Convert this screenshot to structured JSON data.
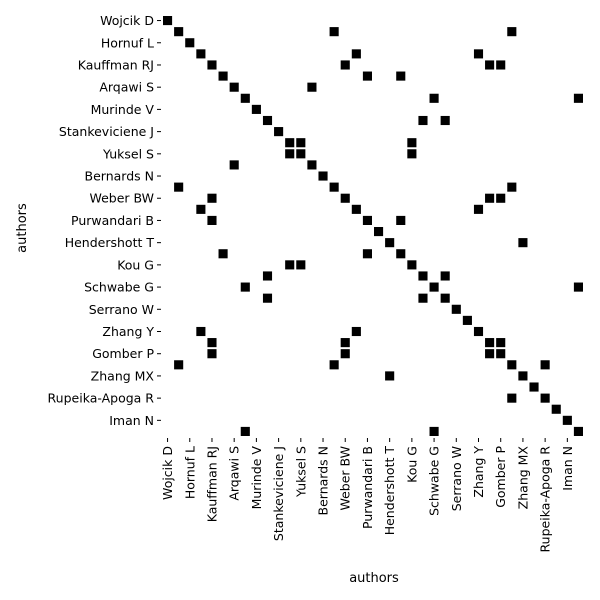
{
  "chart_data": {
    "type": "heatmap",
    "title": "",
    "xlabel": "authors",
    "ylabel": "authors",
    "grid": false,
    "legend": "none",
    "cell_color": "#000000",
    "background_color": "#ffffff",
    "authors": [
      "Wojcik D",
      "",
      "Hornuf L",
      "",
      "Kauffman RJ",
      "",
      "Arqawi S",
      "",
      "Murinde V",
      "",
      "Stankeviciene J",
      "",
      "Yuksel S",
      "",
      "Bernards N",
      "",
      "Weber BW",
      "",
      "Purwandari B",
      "",
      "Hendershott T",
      "",
      "Kou G",
      "",
      "Schwabe G",
      "",
      "Serrano W",
      "",
      "Zhang Y",
      "",
      "Gomber P",
      "",
      "Zhang MX",
      "",
      "Rupeika-Apoga R",
      "",
      "Iman N",
      ""
    ],
    "x_tick_labels": [
      "Wojcik D",
      "Hornuf L",
      "Kauffman RJ",
      "Arqawi S",
      "Murinde V",
      "Stankeviciene J",
      "Yuksel S",
      "Bernards N",
      "Weber BW",
      "Purwandari B",
      "Hendershott T",
      "Kou G",
      "Schwabe G",
      "Serrano W",
      "Zhang Y",
      "Gomber P",
      "Zhang MX",
      "Rupeika-Apoga R",
      "Iman N"
    ],
    "y_tick_labels": [
      "Wojcik D",
      "Hornuf L",
      "Kauffman RJ",
      "Arqawi S",
      "Murinde V",
      "Stankeviciene J",
      "Yuksel S",
      "Bernards N",
      "Weber BW",
      "Purwandari B",
      "Hendershott T",
      "Kou G",
      "Schwabe G",
      "Serrano W",
      "Zhang Y",
      "Gomber P",
      "Zhang MX",
      "Rupeika-Apoga R",
      "Iman N"
    ],
    "tick_every": 2,
    "cells": [
      [
        0,
        0
      ],
      [
        1,
        1
      ],
      [
        1,
        15
      ],
      [
        1,
        31
      ],
      [
        2,
        2
      ],
      [
        3,
        3
      ],
      [
        3,
        17
      ],
      [
        3,
        28
      ],
      [
        4,
        4
      ],
      [
        4,
        16
      ],
      [
        4,
        29
      ],
      [
        4,
        30
      ],
      [
        5,
        5
      ],
      [
        5,
        18
      ],
      [
        5,
        21
      ],
      [
        6,
        6
      ],
      [
        6,
        13
      ],
      [
        7,
        7
      ],
      [
        7,
        24
      ],
      [
        7,
        37
      ],
      [
        8,
        8
      ],
      [
        9,
        9
      ],
      [
        9,
        23
      ],
      [
        9,
        25
      ],
      [
        10,
        10
      ],
      [
        11,
        11
      ],
      [
        11,
        12
      ],
      [
        11,
        22
      ],
      [
        12,
        11
      ],
      [
        12,
        12
      ],
      [
        12,
        22
      ],
      [
        13,
        6
      ],
      [
        13,
        13
      ],
      [
        14,
        14
      ],
      [
        15,
        1
      ],
      [
        15,
        15
      ],
      [
        15,
        31
      ],
      [
        16,
        4
      ],
      [
        16,
        16
      ],
      [
        16,
        29
      ],
      [
        16,
        30
      ],
      [
        17,
        3
      ],
      [
        17,
        17
      ],
      [
        17,
        28
      ],
      [
        18,
        4
      ],
      [
        18,
        18
      ],
      [
        18,
        21
      ],
      [
        19,
        19
      ],
      [
        20,
        20
      ],
      [
        20,
        32
      ],
      [
        21,
        5
      ],
      [
        21,
        18
      ],
      [
        21,
        21
      ],
      [
        22,
        11
      ],
      [
        22,
        12
      ],
      [
        22,
        22
      ],
      [
        23,
        9
      ],
      [
        23,
        23
      ],
      [
        23,
        25
      ],
      [
        24,
        7
      ],
      [
        24,
        24
      ],
      [
        24,
        37
      ],
      [
        25,
        9
      ],
      [
        25,
        23
      ],
      [
        25,
        25
      ],
      [
        26,
        26
      ],
      [
        27,
        27
      ],
      [
        28,
        3
      ],
      [
        28,
        17
      ],
      [
        28,
        28
      ],
      [
        29,
        4
      ],
      [
        29,
        16
      ],
      [
        29,
        29
      ],
      [
        29,
        30
      ],
      [
        30,
        4
      ],
      [
        30,
        16
      ],
      [
        30,
        29
      ],
      [
        30,
        30
      ],
      [
        31,
        1
      ],
      [
        31,
        15
      ],
      [
        31,
        31
      ],
      [
        31,
        34
      ],
      [
        32,
        20
      ],
      [
        32,
        32
      ],
      [
        33,
        33
      ],
      [
        34,
        31
      ],
      [
        34,
        34
      ],
      [
        35,
        35
      ],
      [
        36,
        36
      ],
      [
        37,
        7
      ],
      [
        37,
        24
      ],
      [
        37,
        37
      ]
    ]
  }
}
